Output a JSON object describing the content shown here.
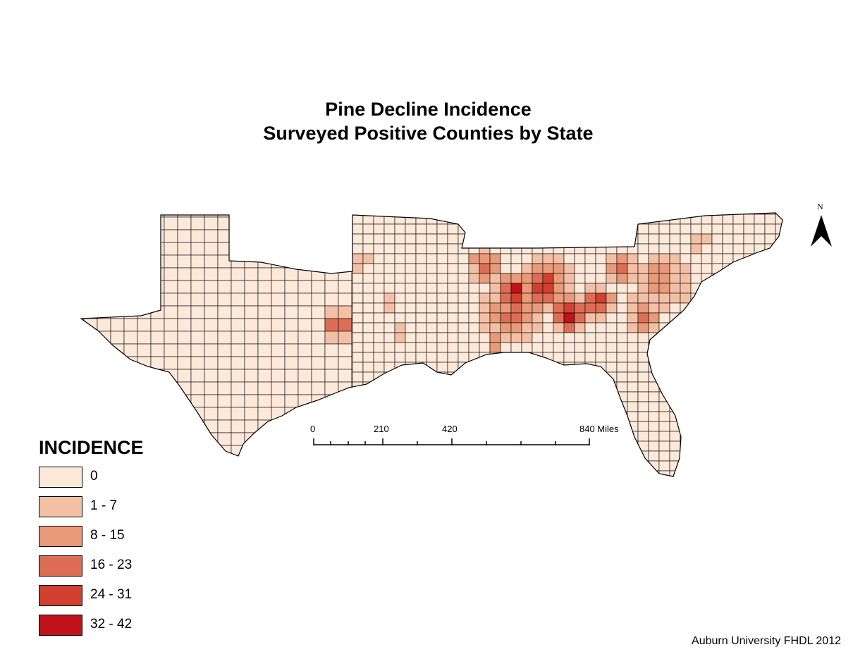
{
  "title_line1": "Pine Decline Incidence",
  "title_line2": "Surveyed Positive Counties by State",
  "credit": "Auburn University FHDL 2012",
  "north_arrow": {
    "label": "N",
    "icon": "north-arrow-icon"
  },
  "scale_bar": {
    "labels": [
      "0",
      "210",
      "420",
      "840 Miles"
    ]
  },
  "legend": {
    "title": "INCIDENCE",
    "items": [
      {
        "label": "0",
        "color": "#fde9d9"
      },
      {
        "label": "1 - 7",
        "color": "#f4c0a5"
      },
      {
        "label": "8 - 15",
        "color": "#e89a79"
      },
      {
        "label": "16 - 23",
        "color": "#dd6e55"
      },
      {
        "label": "24 - 31",
        "color": "#d2402f"
      },
      {
        "label": "32 - 42",
        "color": "#c1121a"
      }
    ]
  }
}
